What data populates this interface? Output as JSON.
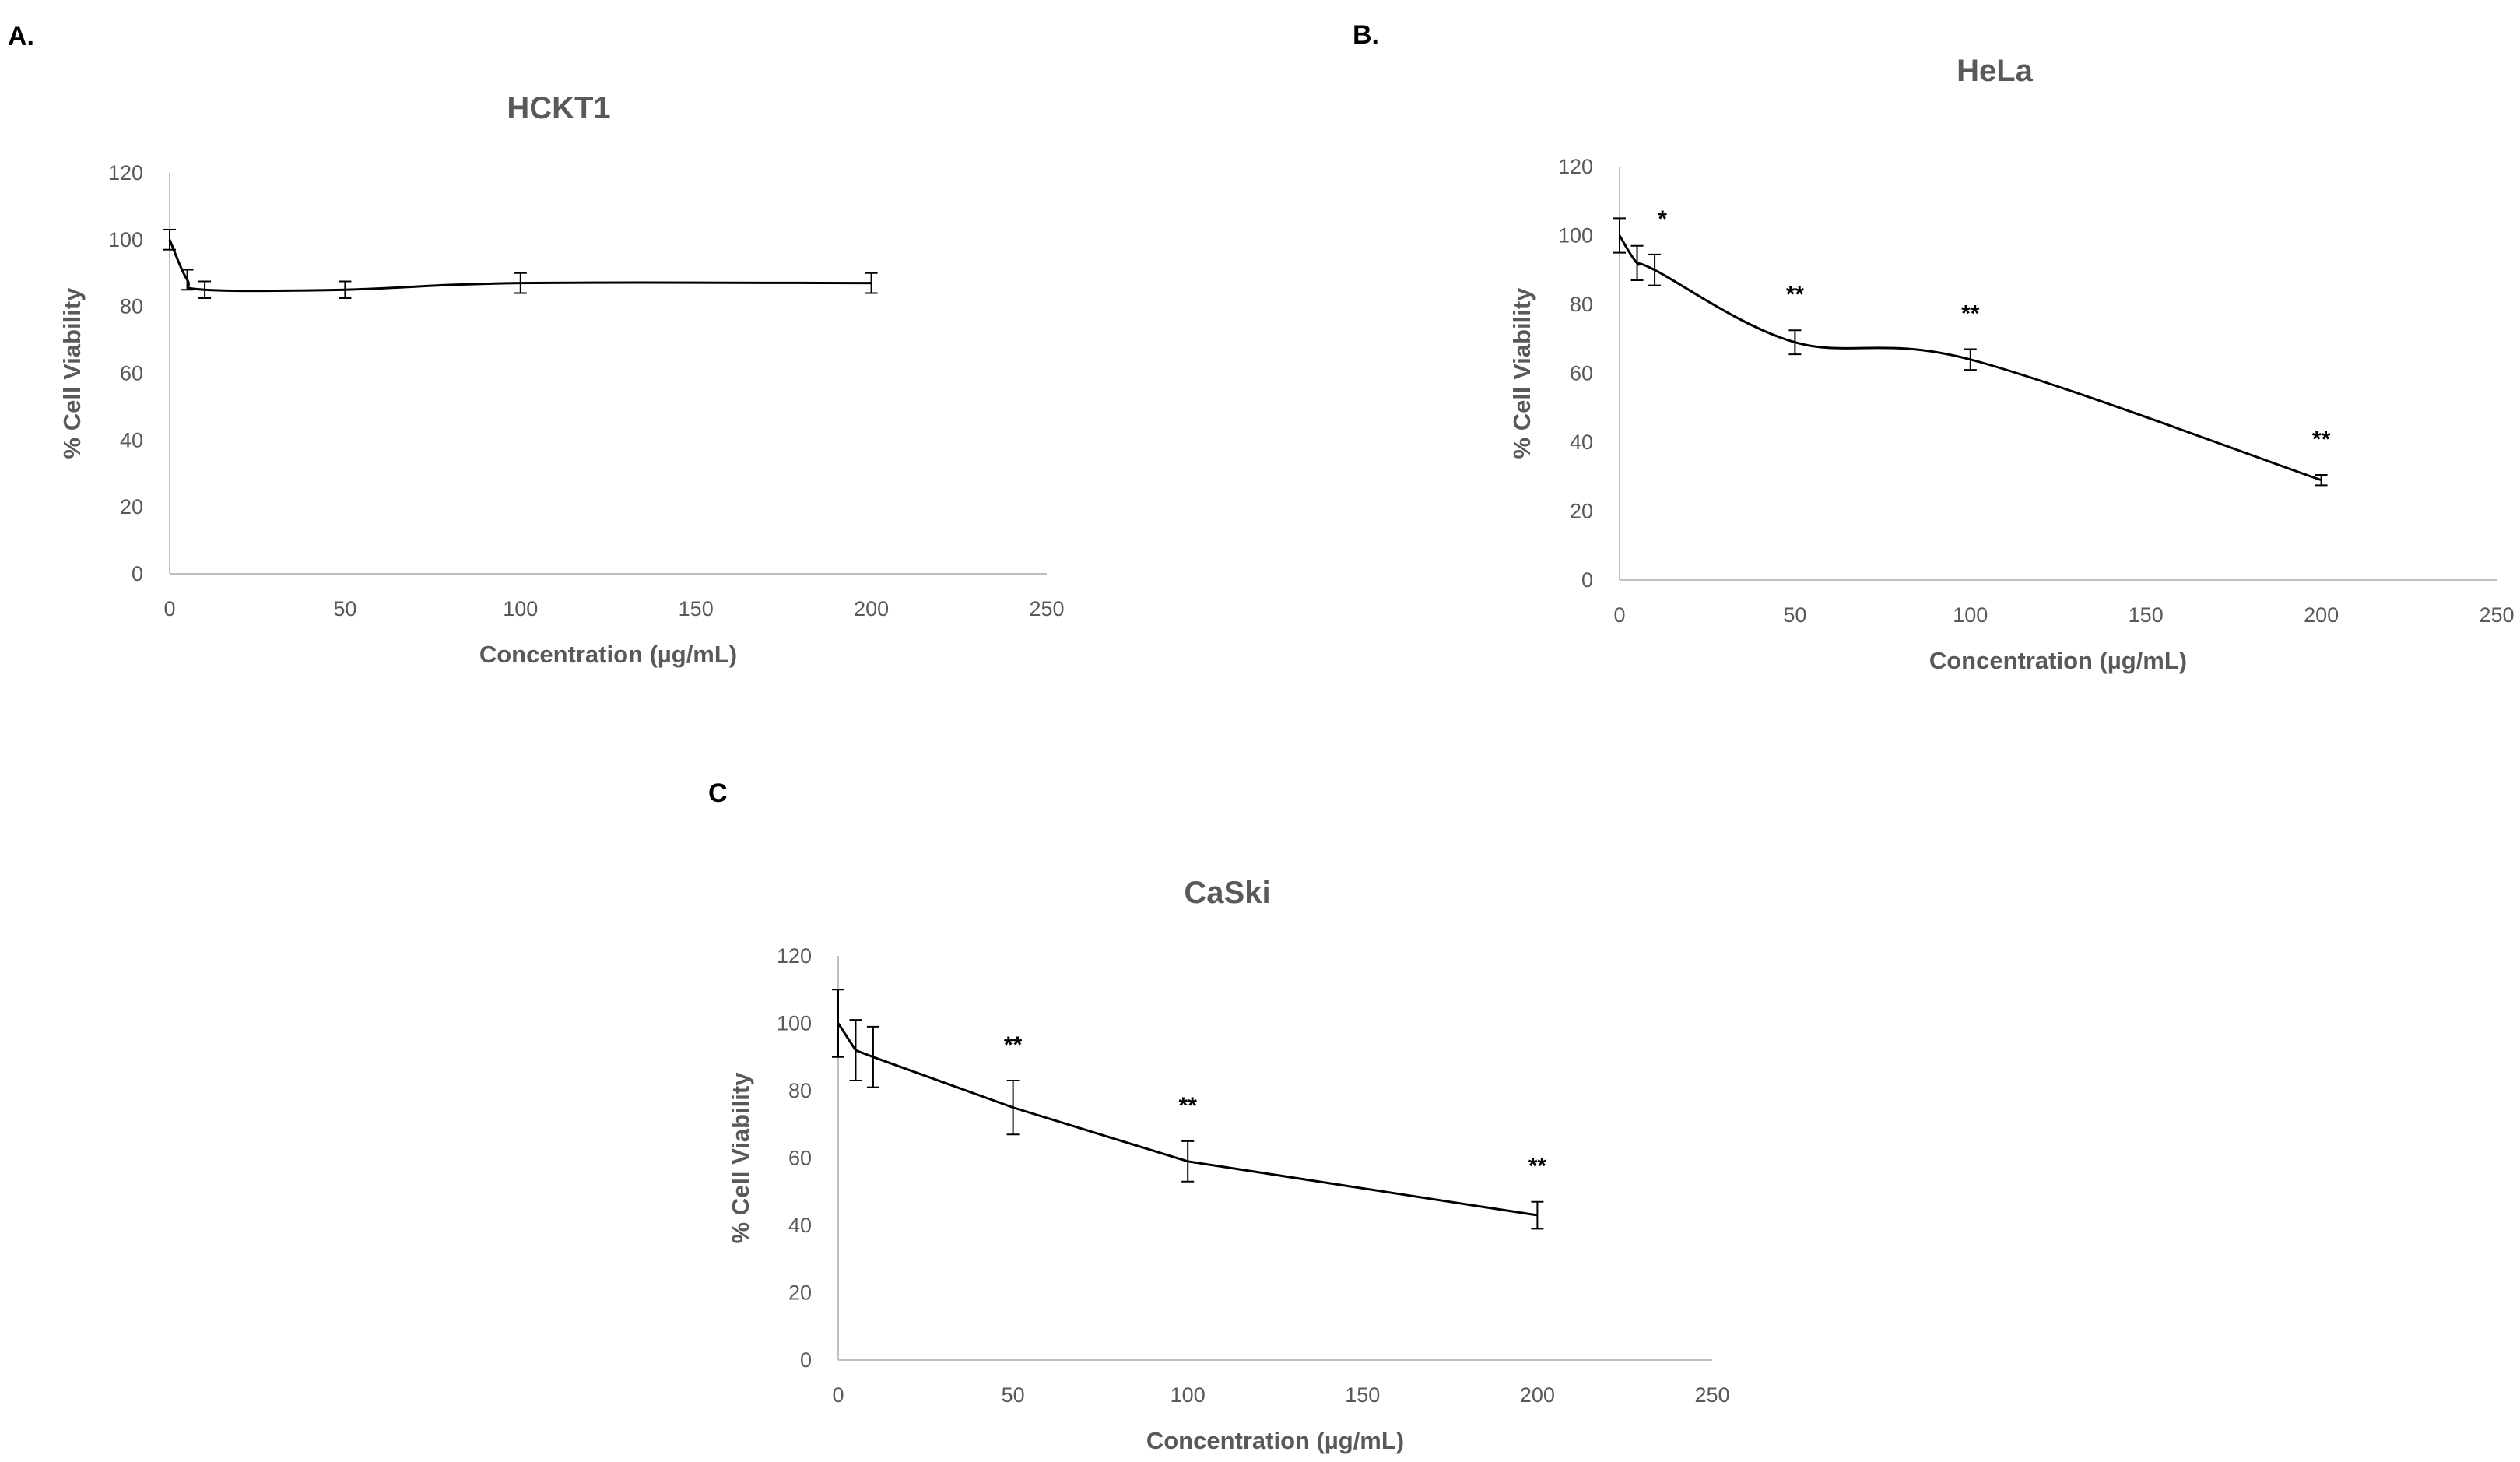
{
  "chart_data": [
    {
      "panel_label": "A.",
      "type": "line",
      "title": "HCKT1",
      "xlabel": "Concentration (µg/mL)",
      "ylabel": "% Cell Viability",
      "xlim": [
        0,
        250
      ],
      "ylim": [
        0,
        120
      ],
      "xticks": [
        0,
        50,
        100,
        150,
        200,
        250
      ],
      "yticks": [
        0,
        20,
        40,
        60,
        80,
        100,
        120
      ],
      "grid": false,
      "smooth": true,
      "x": [
        0,
        5,
        10,
        50,
        100,
        200
      ],
      "y": [
        100,
        88,
        85,
        85,
        87,
        87
      ],
      "error": [
        3,
        3,
        2.5,
        2.5,
        3,
        3
      ],
      "annotations": [
        "",
        "",
        "",
        "",
        "",
        ""
      ]
    },
    {
      "panel_label": "B.",
      "type": "line",
      "title": "HeLa",
      "xlabel": "Concentration (µg/mL)",
      "ylabel": "% Cell Viability",
      "xlim": [
        0,
        250
      ],
      "ylim": [
        0,
        120
      ],
      "xticks": [
        0,
        50,
        100,
        150,
        200,
        250
      ],
      "yticks": [
        0,
        20,
        40,
        60,
        80,
        100,
        120
      ],
      "grid": false,
      "smooth": true,
      "x": [
        0,
        5,
        10,
        50,
        100,
        200
      ],
      "y": [
        100,
        92,
        90,
        69,
        64,
        29
      ],
      "error": [
        5,
        5,
        4.5,
        3.5,
        3,
        1.5
      ],
      "annotations": [
        "",
        "",
        "*",
        "**",
        "**",
        "**"
      ]
    },
    {
      "panel_label": "C",
      "type": "line",
      "title": "CaSki",
      "xlabel": "Concentration (µg/mL)",
      "ylabel": "% Cell Viability",
      "xlim": [
        0,
        250
      ],
      "ylim": [
        0,
        120
      ],
      "xticks": [
        0,
        50,
        100,
        150,
        200,
        250
      ],
      "yticks": [
        0,
        20,
        40,
        60,
        80,
        100,
        120
      ],
      "grid": false,
      "smooth": false,
      "x": [
        0,
        5,
        10,
        50,
        100,
        200
      ],
      "y": [
        100,
        92,
        90,
        75,
        59,
        43
      ],
      "error": [
        10,
        9,
        9,
        8,
        6,
        4
      ],
      "annotations": [
        "",
        "",
        "",
        "**",
        "**",
        "**"
      ]
    }
  ]
}
